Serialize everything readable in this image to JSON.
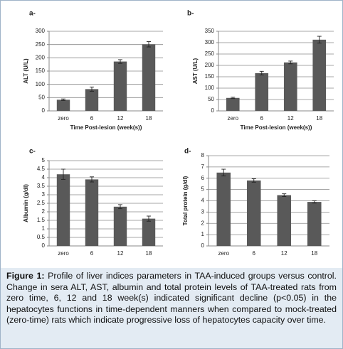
{
  "chart_data": [
    {
      "type": "bar",
      "panel_label": "a-",
      "y_label": "ALT (U/L)",
      "x_label": "Time Post-lesion (week(s))",
      "categories": [
        "zero",
        "6",
        "12",
        "18"
      ],
      "values": [
        42,
        82,
        186,
        251
      ],
      "errors": [
        3,
        8,
        7,
        10
      ],
      "color": "#595959",
      "ylim": [
        0,
        300
      ],
      "yticks": [
        0,
        50,
        100,
        150,
        200,
        250,
        300
      ],
      "grid": true
    },
    {
      "type": "bar",
      "panel_label": "b-",
      "y_label": "AST (U/L)",
      "x_label": "Time Post-lesion (week(s))",
      "categories": [
        "zero",
        "6",
        "12",
        "18"
      ],
      "values": [
        57,
        166,
        213,
        313
      ],
      "errors": [
        3,
        8,
        6,
        15
      ],
      "color": "#595959",
      "ylim": [
        0,
        350
      ],
      "yticks": [
        0,
        50,
        100,
        150,
        200,
        250,
        300,
        350
      ],
      "grid": true
    },
    {
      "type": "bar",
      "panel_label": "c-",
      "y_label": "Albumin (g/dl)",
      "categories": [
        "zero",
        "6",
        "12",
        "18"
      ],
      "values": [
        4.2,
        3.9,
        2.3,
        1.6
      ],
      "errors": [
        0.3,
        0.15,
        0.12,
        0.15
      ],
      "color": "#595959",
      "ylim": [
        0,
        5
      ],
      "yticks": [
        0,
        0.5,
        1,
        1.5,
        2,
        2.5,
        3,
        3.5,
        4,
        4.5,
        5
      ],
      "grid": true
    },
    {
      "type": "bar",
      "panel_label": "d-",
      "y_label": "Total protein (g/dl)",
      "categories": [
        "zero",
        "6",
        "12",
        "18"
      ],
      "values": [
        6.5,
        5.8,
        4.5,
        3.9
      ],
      "errors": [
        0.3,
        0.15,
        0.12,
        0.1
      ],
      "color": "#595959",
      "ylim": [
        0,
        8
      ],
      "yticks": [
        0,
        1,
        2,
        3,
        4,
        5,
        6,
        7,
        8
      ],
      "grid": true
    }
  ],
  "caption": {
    "label": "Figure 1:",
    "text": "Profile of liver indices parameters in TAA-induced groups versus control. Change in sera ALT, AST, albumin and total protein levels of TAA-treated rats from zero time, 6, 12 and 18 week(s) indicated significant decline (p<0.05) in the hepatocytes functions in time-dependent manners when compared to mock-treated (zero-time) rats which indicate progressive loss of hepatocytes capacity over time."
  }
}
